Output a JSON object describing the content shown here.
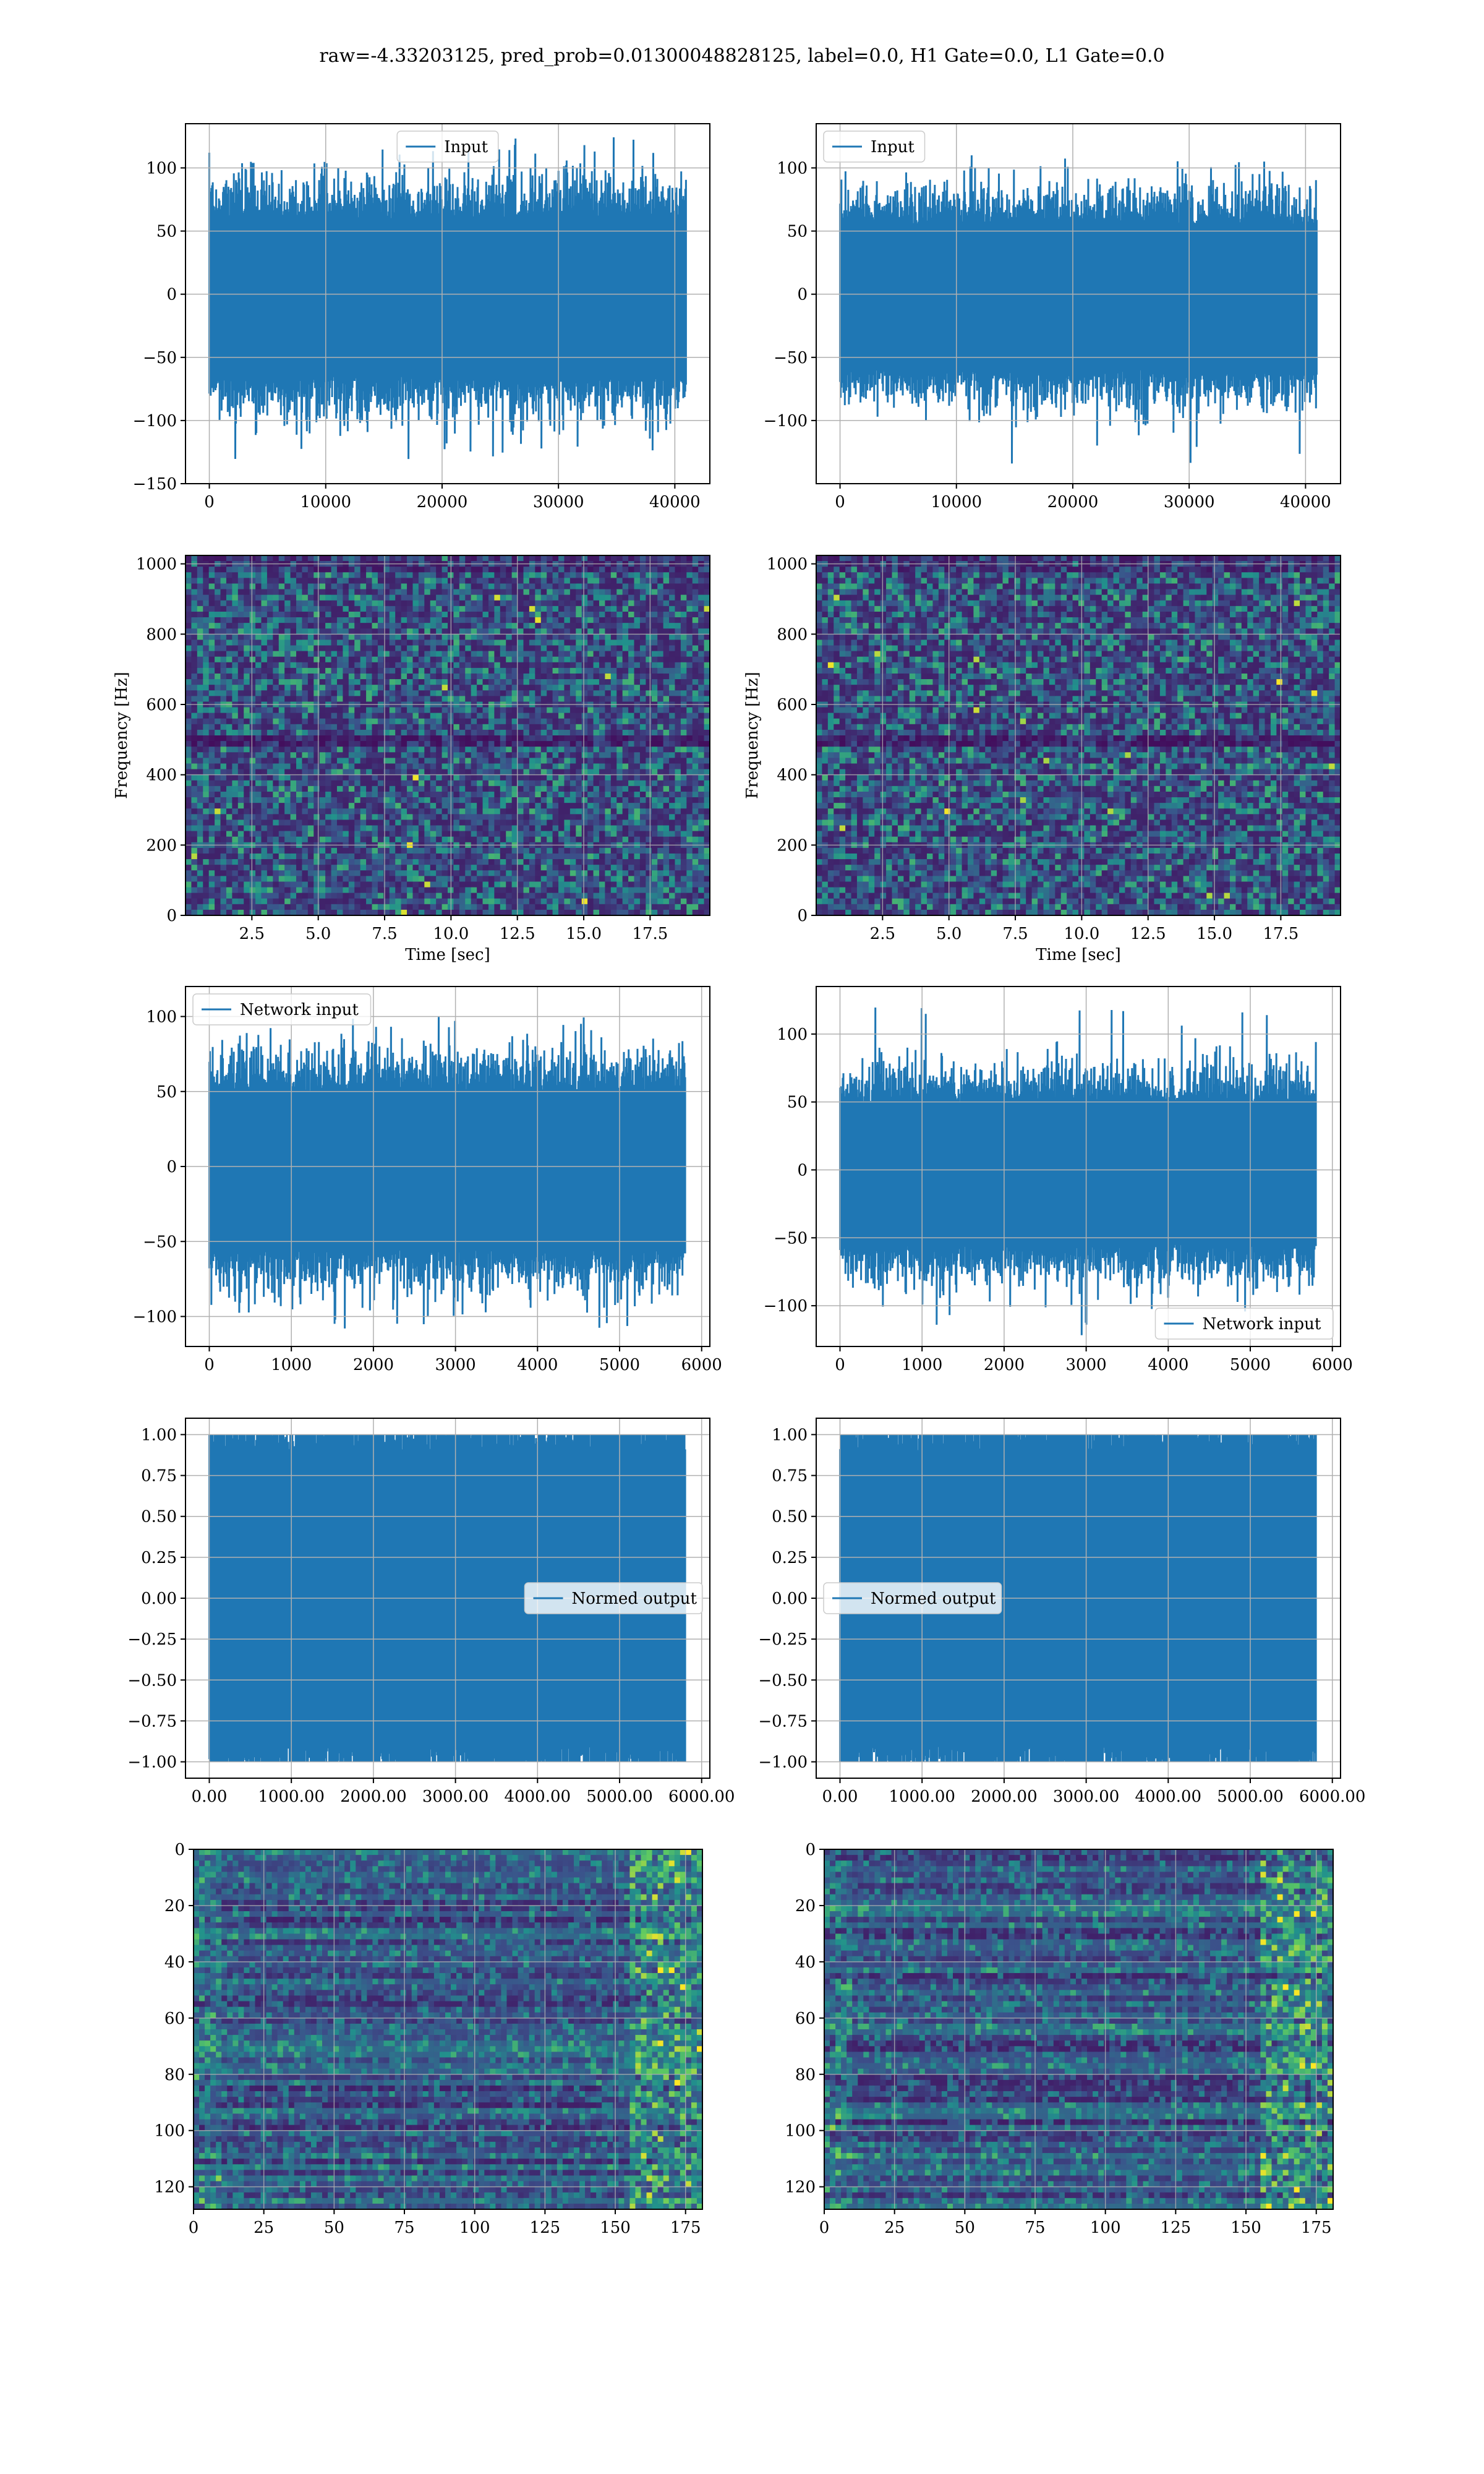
{
  "figure": {
    "suptitle": "raw=-4.33203125, pred_prob=0.01300048828125, label=0.0, H1 Gate=0.0, L1 Gate=0.0"
  },
  "colors": {
    "line": "#1f77b4",
    "grid": "#b0b0b0",
    "viridis_dark": "#440154",
    "viridis_mid": "#21918c",
    "viridis_bright": "#fde725"
  },
  "chart_data": [
    {
      "id": "h1-input",
      "type": "line",
      "title": "",
      "xlabel": "",
      "ylabel": "",
      "xlim": [
        -2048,
        43008
      ],
      "ylim": [
        -150,
        135
      ],
      "xticks": [
        0,
        10000,
        20000,
        30000,
        40000
      ],
      "yticks": [
        -150,
        -100,
        -50,
        0,
        50,
        100
      ],
      "series": [
        {
          "name": "Input",
          "n_points": 40960,
          "x_range": [
            0,
            40959
          ],
          "envelope_max": 125,
          "envelope_min": -137,
          "typical_max": 60,
          "typical_min": -65
        }
      ],
      "legend": {
        "position": "upper center",
        "entries": [
          "Input"
        ]
      },
      "grid": true
    },
    {
      "id": "l1-input",
      "type": "line",
      "title": "",
      "xlabel": "",
      "ylabel": "",
      "xlim": [
        -2048,
        43008
      ],
      "ylim": [
        -150,
        135
      ],
      "xticks": [
        0,
        10000,
        20000,
        30000,
        40000
      ],
      "yticks": [
        -100,
        -50,
        0,
        50,
        100
      ],
      "series": [
        {
          "name": "Input",
          "n_points": 40960,
          "x_range": [
            0,
            40959
          ],
          "envelope_max": 110,
          "envelope_min": -135,
          "typical_max": 55,
          "typical_min": -60
        }
      ],
      "legend": {
        "position": "upper left",
        "entries": [
          "Input"
        ]
      },
      "grid": true
    },
    {
      "id": "h1-spectrogram",
      "type": "heatmap",
      "title": "",
      "xlabel": "Time [sec]",
      "ylabel": "Frequency [Hz]",
      "xlim": [
        0,
        19.75
      ],
      "ylim": [
        0,
        1024
      ],
      "xticks": [
        2.5,
        5.0,
        7.5,
        10.0,
        12.5,
        15.0,
        17.5
      ],
      "yticks": [
        0,
        200,
        400,
        600,
        800,
        1000
      ],
      "colormap": "viridis",
      "grid": true
    },
    {
      "id": "l1-spectrogram",
      "type": "heatmap",
      "title": "",
      "xlabel": "Time [sec]",
      "ylabel": "Frequency [Hz]",
      "xlim": [
        0,
        19.75
      ],
      "ylim": [
        0,
        1024
      ],
      "xticks": [
        2.5,
        5.0,
        7.5,
        10.0,
        12.5,
        15.0,
        17.5
      ],
      "yticks": [
        0,
        200,
        400,
        600,
        800,
        1000
      ],
      "colormap": "viridis",
      "grid": true
    },
    {
      "id": "h1-network-input",
      "type": "line",
      "title": "",
      "xlabel": "",
      "ylabel": "",
      "xlim": [
        -290,
        6100
      ],
      "ylim": [
        -120,
        120
      ],
      "xticks": [
        0,
        1000,
        2000,
        3000,
        4000,
        5000,
        6000
      ],
      "yticks": [
        -100,
        -50,
        0,
        50,
        100
      ],
      "series": [
        {
          "name": "Network input",
          "n_points": 5800,
          "x_range": [
            0,
            5799
          ],
          "envelope_max": 104,
          "envelope_min": -108,
          "typical_max": 50,
          "typical_min": -55
        }
      ],
      "legend": {
        "position": "upper left",
        "entries": [
          "Network input"
        ]
      },
      "grid": true
    },
    {
      "id": "l1-network-input",
      "type": "line",
      "title": "",
      "xlabel": "",
      "ylabel": "",
      "xlim": [
        -290,
        6100
      ],
      "ylim": [
        -130,
        135
      ],
      "xticks": [
        0,
        1000,
        2000,
        3000,
        4000,
        5000,
        6000
      ],
      "yticks": [
        -100,
        -50,
        0,
        50,
        100
      ],
      "series": [
        {
          "name": "Network input",
          "n_points": 5800,
          "x_range": [
            0,
            5799
          ],
          "envelope_max": 124,
          "envelope_min": -122,
          "typical_max": 50,
          "typical_min": -55
        }
      ],
      "legend": {
        "position": "lower right",
        "entries": [
          "Network input"
        ]
      },
      "grid": true
    },
    {
      "id": "h1-normed-output",
      "type": "line",
      "title": "",
      "xlabel": "",
      "ylabel": "",
      "xlim": [
        -290,
        6100
      ],
      "ylim": [
        -1.1,
        1.1
      ],
      "xticks": [
        0,
        1000,
        2000,
        3000,
        4000,
        5000,
        6000
      ],
      "yticks": [
        -1.0,
        -0.75,
        -0.5,
        -0.25,
        0.0,
        0.25,
        0.5,
        0.75,
        1.0
      ],
      "series": [
        {
          "name": "Normed output",
          "n_points": 5800,
          "x_range": [
            0,
            5799
          ],
          "envelope_max": 1.0,
          "envelope_min": -1.0,
          "typical_max": 0.9,
          "typical_min": -0.9
        }
      ],
      "legend": {
        "position": "center right",
        "entries": [
          "Normed output"
        ]
      },
      "grid": true
    },
    {
      "id": "l1-normed-output",
      "type": "line",
      "title": "",
      "xlabel": "",
      "ylabel": "",
      "xlim": [
        -290,
        6100
      ],
      "ylim": [
        -1.1,
        1.1
      ],
      "xticks": [
        0,
        1000,
        2000,
        3000,
        4000,
        5000,
        6000
      ],
      "yticks": [
        -1.0,
        -0.75,
        -0.5,
        -0.25,
        0.0,
        0.25,
        0.5,
        0.75,
        1.0
      ],
      "series": [
        {
          "name": "Normed output",
          "n_points": 5800,
          "x_range": [
            0,
            5799
          ],
          "envelope_max": 1.0,
          "envelope_min": -1.0,
          "typical_max": 0.9,
          "typical_min": -0.9
        }
      ],
      "legend": {
        "position": "center left",
        "entries": [
          "Normed output"
        ]
      },
      "grid": true
    },
    {
      "id": "h1-feature-map",
      "type": "heatmap",
      "title": "",
      "xlabel": "",
      "ylabel": "",
      "xlim": [
        0,
        181
      ],
      "ylim": [
        128,
        0
      ],
      "xticks": [
        0,
        25,
        50,
        75,
        100,
        125,
        150,
        175
      ],
      "yticks": [
        0,
        20,
        40,
        60,
        80,
        100,
        120
      ],
      "colormap": "viridis",
      "grid": true
    },
    {
      "id": "l1-feature-map",
      "type": "heatmap",
      "title": "",
      "xlabel": "",
      "ylabel": "",
      "xlim": [
        0,
        181
      ],
      "ylim": [
        128,
        0
      ],
      "xticks": [
        0,
        25,
        50,
        75,
        100,
        125,
        150,
        175
      ],
      "yticks": [
        0,
        20,
        40,
        60,
        80,
        100,
        120
      ],
      "colormap": "viridis",
      "grid": true
    }
  ]
}
